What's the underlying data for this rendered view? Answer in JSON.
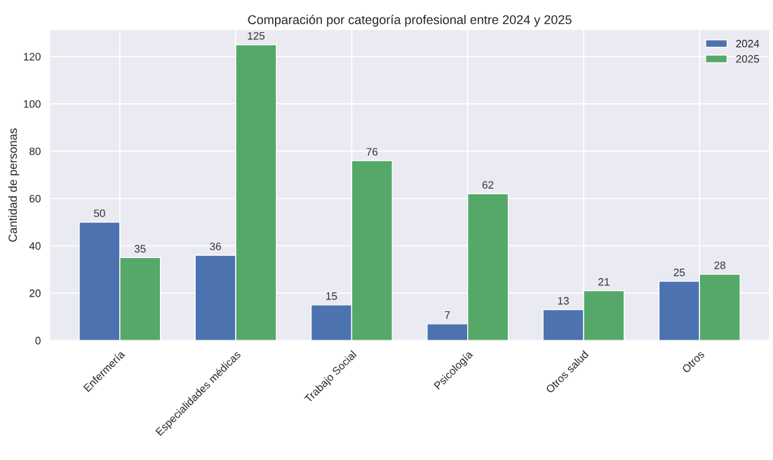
{
  "chart_data": {
    "type": "bar",
    "title": "Comparación por categoría profesional entre 2024 y 2025",
    "ylabel": "Cantidad de personas",
    "categories": [
      "Enfermería",
      "Especialidades médicas",
      "Trabajo Social",
      "Psicología",
      "Otros salud",
      "Otros"
    ],
    "series": [
      {
        "name": "2024",
        "color": "#4c72b0",
        "values": [
          50,
          36,
          15,
          7,
          13,
          25
        ]
      },
      {
        "name": "2025",
        "color": "#55a868",
        "values": [
          35,
          125,
          76,
          62,
          21,
          28
        ]
      }
    ],
    "ylim": [
      0,
      131.25
    ],
    "yticks": [
      0,
      20,
      40,
      60,
      80,
      100,
      120
    ],
    "grid": true,
    "legend": "top right",
    "data_labels": true
  }
}
